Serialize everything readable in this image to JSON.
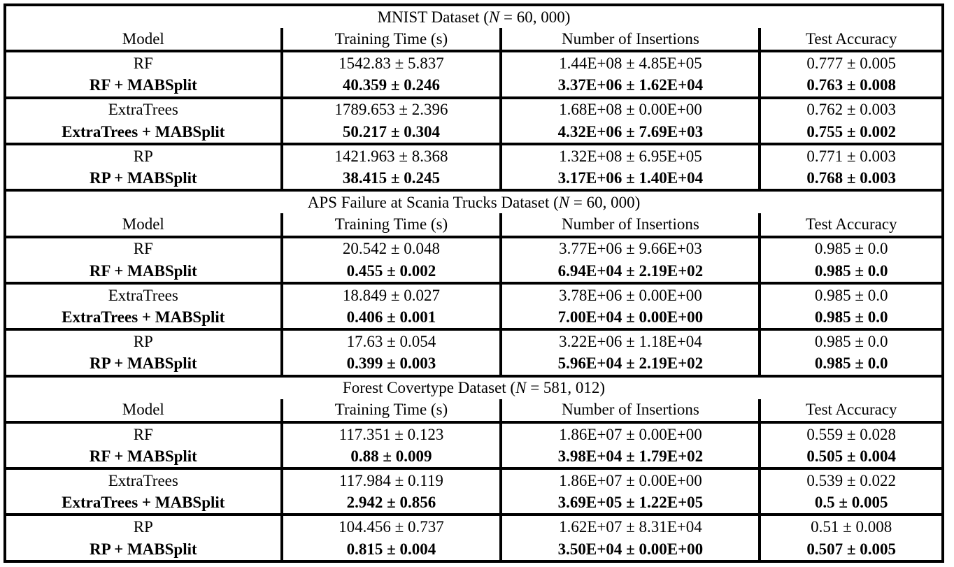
{
  "table": {
    "columns": [
      "Model",
      "Training Time (s)",
      "Number of Insertions",
      "Test Accuracy"
    ],
    "sections": [
      {
        "title": {
          "pre": "MNIST Dataset (",
          "var": "N",
          "post": " = 60, 000)"
        },
        "rows": [
          {
            "model": "RF",
            "training_time": "1542.83 ± 5.837",
            "insertions": "1.44E+08 ± 4.85E+05",
            "accuracy": "0.777 ± 0.005"
          },
          {
            "model": "RF + MABSplit",
            "training_time": "40.359 ± 0.246",
            "insertions": "3.37E+06 ± 1.62E+04",
            "accuracy": "0.763 ± 0.008"
          },
          {
            "model": "ExtraTrees",
            "training_time": "1789.653 ± 2.396",
            "insertions": "1.68E+08 ± 0.00E+00",
            "accuracy": "0.762 ± 0.003"
          },
          {
            "model": "ExtraTrees + MABSplit",
            "training_time": "50.217 ± 0.304",
            "insertions": "4.32E+06 ± 7.69E+03",
            "accuracy": "0.755 ± 0.002"
          },
          {
            "model": "RP",
            "training_time": "1421.963 ± 8.368",
            "insertions": "1.32E+08 ± 6.95E+05",
            "accuracy": "0.771 ± 0.003"
          },
          {
            "model": "RP + MABSplit",
            "training_time": "38.415 ± 0.245",
            "insertions": "3.17E+06 ± 1.40E+04",
            "accuracy": "0.768 ± 0.003"
          }
        ]
      },
      {
        "title": {
          "pre": "APS Failure at Scania Trucks Dataset (",
          "var": "N",
          "post": " = 60, 000)"
        },
        "rows": [
          {
            "model": "RF",
            "training_time": "20.542 ± 0.048",
            "insertions": "3.77E+06 ± 9.66E+03",
            "accuracy": "0.985 ± 0.0"
          },
          {
            "model": "RF + MABSplit",
            "training_time": "0.455 ± 0.002",
            "insertions": "6.94E+04 ± 2.19E+02",
            "accuracy": "0.985 ± 0.0"
          },
          {
            "model": "ExtraTrees",
            "training_time": "18.849 ± 0.027",
            "insertions": "3.78E+06 ± 0.00E+00",
            "accuracy": "0.985 ± 0.0"
          },
          {
            "model": "ExtraTrees + MABSplit",
            "training_time": "0.406 ± 0.001",
            "insertions": "7.00E+04 ± 0.00E+00",
            "accuracy": "0.985 ± 0.0"
          },
          {
            "model": "RP",
            "training_time": "17.63 ± 0.054",
            "insertions": "3.22E+06 ± 1.18E+04",
            "accuracy": "0.985 ± 0.0"
          },
          {
            "model": "RP + MABSplit",
            "training_time": "0.399 ± 0.003",
            "insertions": "5.96E+04 ± 2.19E+02",
            "accuracy": "0.985 ± 0.0"
          }
        ]
      },
      {
        "title": {
          "pre": "Forest Covertype Dataset (",
          "var": "N",
          "post": " = 581, 012)"
        },
        "rows": [
          {
            "model": "RF",
            "training_time": "117.351 ± 0.123",
            "insertions": "1.86E+07 ± 0.00E+00",
            "accuracy": "0.559 ± 0.028"
          },
          {
            "model": "RF + MABSplit",
            "training_time": "0.88 ± 0.009",
            "insertions": "3.98E+04 ± 1.79E+02",
            "accuracy": "0.505 ± 0.004"
          },
          {
            "model": "ExtraTrees",
            "training_time": "117.984 ± 0.119",
            "insertions": "1.86E+07 ± 0.00E+00",
            "accuracy": "0.539 ± 0.022"
          },
          {
            "model": "ExtraTrees + MABSplit",
            "training_time": "2.942 ± 0.856",
            "insertions": "3.69E+05 ± 1.22E+05",
            "accuracy": "0.5 ± 0.005"
          },
          {
            "model": "RP",
            "training_time": "104.456 ± 0.737",
            "insertions": "1.62E+07 ± 8.31E+04",
            "accuracy": "0.51 ± 0.008"
          },
          {
            "model": "RP + MABSplit",
            "training_time": "0.815 ± 0.004",
            "insertions": "3.50E+04 ± 0.00E+00",
            "accuracy": "0.507 ± 0.005"
          }
        ]
      }
    ]
  }
}
